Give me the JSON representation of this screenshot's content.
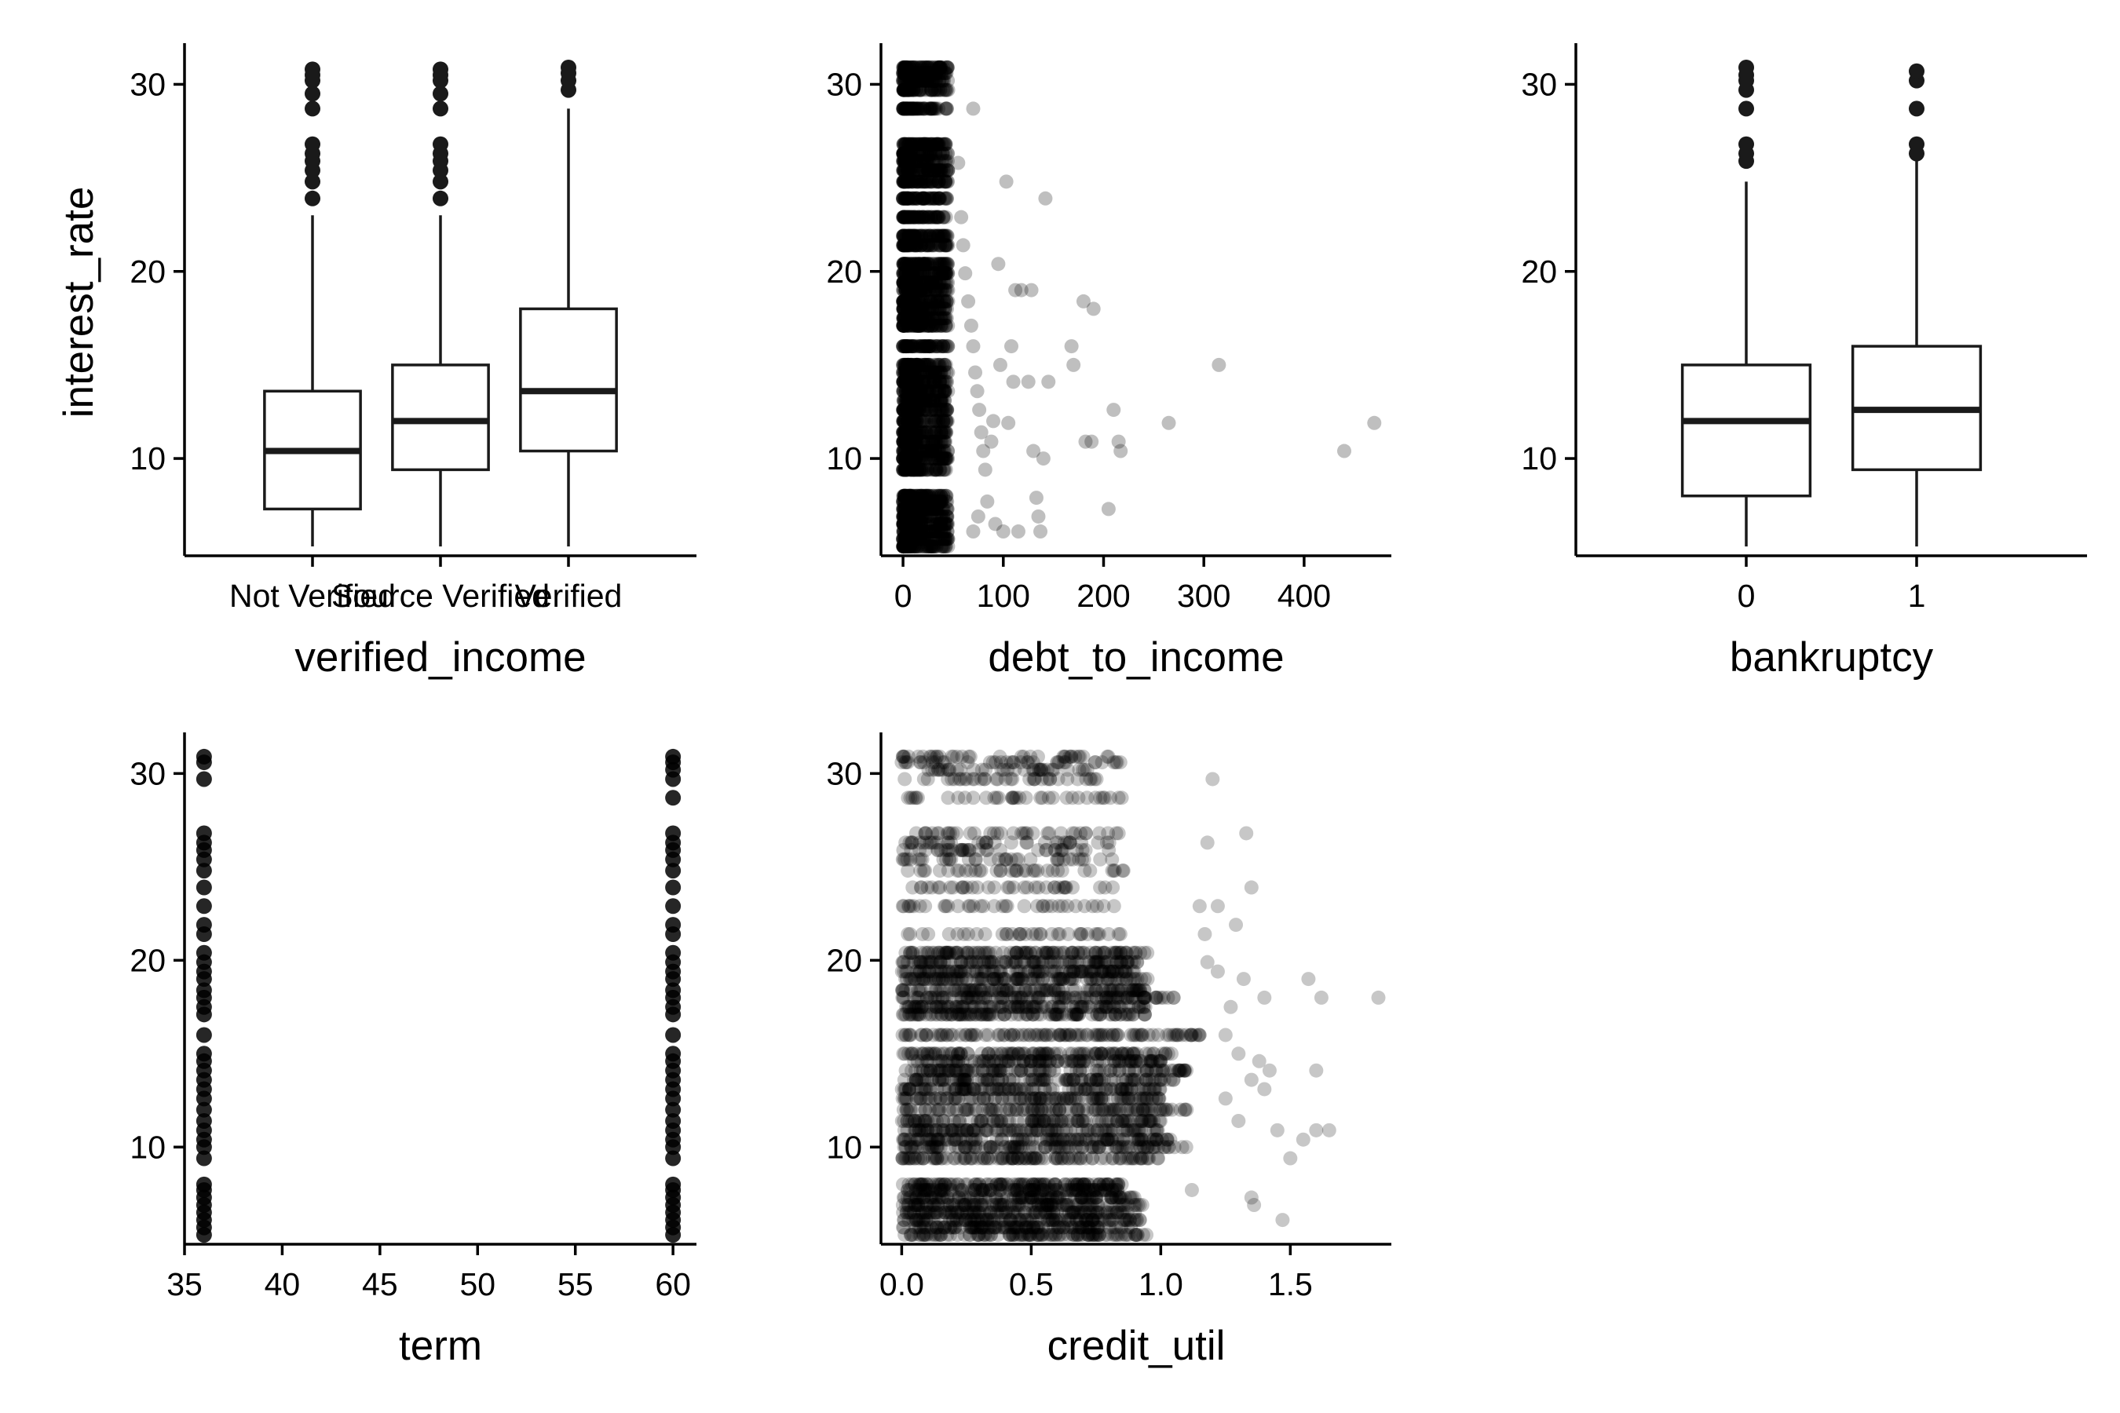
{
  "figure": {
    "background": "#ffffff",
    "box_stroke": "#1a1a1a",
    "point_color": "#000000",
    "y_label": "interest_rate"
  },
  "chart_data": [
    {
      "type": "box",
      "id": "verified_income",
      "xlabel": "verified_income",
      "ylabel": "interest_rate",
      "ylim": [
        4.8,
        32.2
      ],
      "yticks": [
        10,
        20,
        30
      ],
      "categories": [
        "Not Verified",
        "Source Verified",
        "Verified"
      ],
      "boxes": [
        {
          "category": "Not Verified",
          "whisker_low": 5.3,
          "q1": 7.3,
          "median": 10.4,
          "q3": 13.6,
          "whisker_high": 23.0,
          "outliers": [
            23.9,
            24.8,
            25.4,
            25.9,
            26.3,
            26.8,
            28.7,
            29.5,
            30.2,
            30.5,
            30.8
          ]
        },
        {
          "category": "Source Verified",
          "whisker_low": 5.3,
          "q1": 9.4,
          "median": 12.0,
          "q3": 15.0,
          "whisker_high": 23.0,
          "outliers": [
            23.9,
            24.8,
            25.4,
            25.9,
            26.3,
            26.8,
            28.7,
            29.5,
            30.2,
            30.5,
            30.8
          ]
        },
        {
          "category": "Verified",
          "whisker_low": 5.3,
          "q1": 10.4,
          "median": 13.6,
          "q3": 18.0,
          "whisker_high": 28.7,
          "outliers": [
            29.7,
            30.2,
            30.6,
            30.9
          ]
        }
      ]
    },
    {
      "type": "scatter",
      "id": "debt_to_income",
      "xlabel": "debt_to_income",
      "ylabel": "",
      "xlim": [
        -22,
        487
      ],
      "ylim": [
        4.8,
        32.2
      ],
      "xticks": [
        0,
        100,
        200,
        300,
        400
      ],
      "yticks": [
        10,
        20,
        30
      ],
      "point_alpha": 0.25,
      "cluster": {
        "x_range": [
          0,
          45
        ],
        "y_rates": [
          5.3,
          5.7,
          6.1,
          6.5,
          6.9,
          7.3,
          7.7,
          8.0,
          9.4,
          10.0,
          10.4,
          10.9,
          11.4,
          12.0,
          12.6,
          13.1,
          13.6,
          14.1,
          14.6,
          15.0,
          16.0,
          17.1,
          17.5,
          18.0,
          18.4,
          19.0,
          19.4,
          19.9,
          20.4,
          21.4,
          21.9,
          22.9,
          23.9,
          24.8,
          25.4,
          25.9,
          26.3,
          26.8,
          28.7,
          29.7,
          30.2,
          30.6,
          30.9
        ]
      },
      "points": [
        {
          "x": 55,
          "y": 25.8
        },
        {
          "x": 58,
          "y": 22.9
        },
        {
          "x": 60,
          "y": 21.4
        },
        {
          "x": 62,
          "y": 19.9
        },
        {
          "x": 65,
          "y": 18.4
        },
        {
          "x": 68,
          "y": 17.1
        },
        {
          "x": 70,
          "y": 16.0
        },
        {
          "x": 72,
          "y": 14.6
        },
        {
          "x": 74,
          "y": 13.6
        },
        {
          "x": 76,
          "y": 12.6
        },
        {
          "x": 78,
          "y": 11.4
        },
        {
          "x": 80,
          "y": 10.4
        },
        {
          "x": 82,
          "y": 9.4
        },
        {
          "x": 84,
          "y": 7.7
        },
        {
          "x": 70,
          "y": 28.7
        },
        {
          "x": 75,
          "y": 6.9
        },
        {
          "x": 70,
          "y": 6.1
        },
        {
          "x": 88,
          "y": 10.9
        },
        {
          "x": 90,
          "y": 12.0
        },
        {
          "x": 92,
          "y": 6.5
        },
        {
          "x": 95,
          "y": 20.4
        },
        {
          "x": 97,
          "y": 15.0
        },
        {
          "x": 100,
          "y": 6.1
        },
        {
          "x": 103,
          "y": 24.8
        },
        {
          "x": 105,
          "y": 11.9
        },
        {
          "x": 108,
          "y": 16.0
        },
        {
          "x": 110,
          "y": 14.1
        },
        {
          "x": 112,
          "y": 19.0
        },
        {
          "x": 115,
          "y": 6.1
        },
        {
          "x": 118,
          "y": 19.0
        },
        {
          "x": 125,
          "y": 14.1
        },
        {
          "x": 128,
          "y": 19.0
        },
        {
          "x": 130,
          "y": 10.4
        },
        {
          "x": 133,
          "y": 7.9
        },
        {
          "x": 135,
          "y": 6.9
        },
        {
          "x": 137,
          "y": 6.1
        },
        {
          "x": 140,
          "y": 10.0
        },
        {
          "x": 142,
          "y": 23.9
        },
        {
          "x": 145,
          "y": 14.1
        },
        {
          "x": 168,
          "y": 16.0
        },
        {
          "x": 170,
          "y": 15.0
        },
        {
          "x": 180,
          "y": 18.4
        },
        {
          "x": 182,
          "y": 10.9
        },
        {
          "x": 188,
          "y": 10.9
        },
        {
          "x": 190,
          "y": 18.0
        },
        {
          "x": 205,
          "y": 7.3
        },
        {
          "x": 210,
          "y": 12.6
        },
        {
          "x": 215,
          "y": 10.9
        },
        {
          "x": 217,
          "y": 10.4
        },
        {
          "x": 265,
          "y": 11.9
        },
        {
          "x": 315,
          "y": 15.0
        },
        {
          "x": 440,
          "y": 10.4
        },
        {
          "x": 470,
          "y": 11.9
        }
      ]
    },
    {
      "type": "box",
      "id": "bankruptcy",
      "xlabel": "bankruptcy",
      "ylabel": "",
      "ylim": [
        4.8,
        32.2
      ],
      "yticks": [
        10,
        20,
        30
      ],
      "categories": [
        "0",
        "1"
      ],
      "boxes": [
        {
          "category": "0",
          "whisker_low": 5.3,
          "q1": 8.0,
          "median": 12.0,
          "q3": 15.0,
          "whisker_high": 24.8,
          "outliers": [
            25.9,
            26.3,
            26.8,
            28.7,
            29.7,
            30.2,
            30.5,
            30.9
          ]
        },
        {
          "category": "1",
          "whisker_low": 5.3,
          "q1": 9.4,
          "median": 12.6,
          "q3": 16.0,
          "whisker_high": 25.9,
          "outliers": [
            26.3,
            26.8,
            28.7,
            30.2,
            30.7
          ]
        }
      ]
    },
    {
      "type": "scatter",
      "id": "term",
      "xlabel": "term",
      "ylabel": "",
      "xlim": [
        35,
        61.2
      ],
      "ylim": [
        4.8,
        32.2
      ],
      "xticks": [
        35,
        40,
        45,
        50,
        55,
        60
      ],
      "yticks": [
        10,
        20,
        30
      ],
      "point_alpha": 0.85,
      "columns": [
        {
          "x": 36,
          "y": [
            5.3,
            5.7,
            6.1,
            6.5,
            6.9,
            7.3,
            7.7,
            8.0,
            9.4,
            10.0,
            10.4,
            10.9,
            11.4,
            12.0,
            12.6,
            13.1,
            13.6,
            14.1,
            14.6,
            15.0,
            16.0,
            17.1,
            17.5,
            18.0,
            18.4,
            19.0,
            19.4,
            19.9,
            20.4,
            21.4,
            21.9,
            22.9,
            23.9,
            24.8,
            25.4,
            25.9,
            26.3,
            26.8,
            29.7,
            30.6,
            30.9
          ]
        },
        {
          "x": 60,
          "y": [
            5.3,
            5.7,
            6.1,
            6.5,
            6.9,
            7.3,
            7.7,
            8.0,
            9.4,
            10.0,
            10.4,
            10.9,
            11.4,
            12.0,
            12.6,
            13.1,
            13.6,
            14.1,
            14.6,
            15.0,
            16.0,
            17.1,
            17.5,
            18.0,
            18.4,
            19.0,
            19.4,
            19.9,
            20.4,
            21.4,
            21.9,
            22.9,
            23.9,
            24.8,
            25.4,
            25.9,
            26.3,
            26.8,
            28.7,
            29.7,
            30.2,
            30.6,
            30.9
          ]
        }
      ]
    },
    {
      "type": "scatter",
      "id": "credit_util",
      "xlabel": "credit_util",
      "ylabel": "",
      "xlim": [
        -0.08,
        1.89
      ],
      "ylim": [
        4.8,
        32.2
      ],
      "xticks": [
        0.0,
        0.5,
        1.0,
        1.5
      ],
      "xtick_labels": [
        "0.0",
        "0.5",
        "1.0",
        "1.5"
      ],
      "yticks": [
        10,
        20,
        30
      ],
      "point_alpha": 0.22,
      "dense_rows": [
        {
          "y": 5.3,
          "xmax": 0.95
        },
        {
          "y": 5.7,
          "xmax": 0.9
        },
        {
          "y": 6.1,
          "xmax": 0.92
        },
        {
          "y": 6.5,
          "xmax": 0.9
        },
        {
          "y": 6.9,
          "xmax": 0.95
        },
        {
          "y": 7.3,
          "xmax": 0.9
        },
        {
          "y": 7.7,
          "xmax": 0.88
        },
        {
          "y": 8.0,
          "xmax": 0.85
        },
        {
          "y": 9.4,
          "xmax": 1.0
        },
        {
          "y": 10.0,
          "xmax": 1.1
        },
        {
          "y": 10.4,
          "xmax": 1.05
        },
        {
          "y": 10.9,
          "xmax": 1.0
        },
        {
          "y": 11.4,
          "xmax": 1.0
        },
        {
          "y": 12.0,
          "xmax": 1.1
        },
        {
          "y": 12.6,
          "xmax": 1.0
        },
        {
          "y": 13.1,
          "xmax": 1.0
        },
        {
          "y": 13.6,
          "xmax": 1.05
        },
        {
          "y": 14.1,
          "xmax": 1.1
        },
        {
          "y": 14.6,
          "xmax": 1.0
        },
        {
          "y": 15.0,
          "xmax": 1.05
        },
        {
          "y": 16.0,
          "xmax": 1.15
        },
        {
          "y": 17.1,
          "xmax": 0.95
        },
        {
          "y": 17.5,
          "xmax": 0.95
        },
        {
          "y": 18.0,
          "xmax": 1.05
        },
        {
          "y": 18.4,
          "xmax": 0.95
        },
        {
          "y": 19.0,
          "xmax": 0.95
        },
        {
          "y": 19.4,
          "xmax": 0.9
        },
        {
          "y": 19.9,
          "xmax": 0.92
        },
        {
          "y": 20.4,
          "xmax": 0.95
        }
      ],
      "sparse_rows": [
        {
          "y": 21.4,
          "xmax": 0.85
        },
        {
          "y": 22.9,
          "xmax": 0.85
        },
        {
          "y": 23.9,
          "xmax": 0.82
        },
        {
          "y": 24.8,
          "xmax": 0.88
        },
        {
          "y": 25.4,
          "xmax": 0.85
        },
        {
          "y": 25.9,
          "xmax": 0.9
        },
        {
          "y": 26.3,
          "xmax": 0.85
        },
        {
          "y": 26.8,
          "xmax": 0.85
        },
        {
          "y": 28.7,
          "xmax": 0.85
        },
        {
          "y": 29.7,
          "xmax": 0.8
        },
        {
          "y": 30.2,
          "xmax": 0.75
        },
        {
          "y": 30.6,
          "xmax": 0.85
        },
        {
          "y": 30.9,
          "xmax": 0.85
        }
      ],
      "points": [
        {
          "x": 1.2,
          "y": 29.7
        },
        {
          "x": 1.18,
          "y": 26.3
        },
        {
          "x": 1.33,
          "y": 26.8
        },
        {
          "x": 1.35,
          "y": 23.9
        },
        {
          "x": 1.15,
          "y": 22.9
        },
        {
          "x": 1.22,
          "y": 22.9
        },
        {
          "x": 1.17,
          "y": 21.4
        },
        {
          "x": 1.29,
          "y": 21.9
        },
        {
          "x": 1.18,
          "y": 19.9
        },
        {
          "x": 1.22,
          "y": 19.4
        },
        {
          "x": 1.32,
          "y": 19.0
        },
        {
          "x": 1.4,
          "y": 18.0
        },
        {
          "x": 1.57,
          "y": 19.0
        },
        {
          "x": 1.62,
          "y": 18.0
        },
        {
          "x": 1.84,
          "y": 18.0
        },
        {
          "x": 1.27,
          "y": 17.5
        },
        {
          "x": 1.25,
          "y": 16.0
        },
        {
          "x": 1.3,
          "y": 15.0
        },
        {
          "x": 1.38,
          "y": 14.6
        },
        {
          "x": 1.42,
          "y": 14.1
        },
        {
          "x": 1.6,
          "y": 14.1
        },
        {
          "x": 1.35,
          "y": 13.6
        },
        {
          "x": 1.4,
          "y": 13.1
        },
        {
          "x": 1.25,
          "y": 12.6
        },
        {
          "x": 1.3,
          "y": 11.4
        },
        {
          "x": 1.45,
          "y": 10.9
        },
        {
          "x": 1.55,
          "y": 10.4
        },
        {
          "x": 1.6,
          "y": 10.9
        },
        {
          "x": 1.65,
          "y": 10.9
        },
        {
          "x": 1.5,
          "y": 9.4
        },
        {
          "x": 1.35,
          "y": 7.3
        },
        {
          "x": 1.47,
          "y": 6.1
        },
        {
          "x": 1.36,
          "y": 6.9
        },
        {
          "x": 1.12,
          "y": 7.7
        }
      ]
    }
  ]
}
